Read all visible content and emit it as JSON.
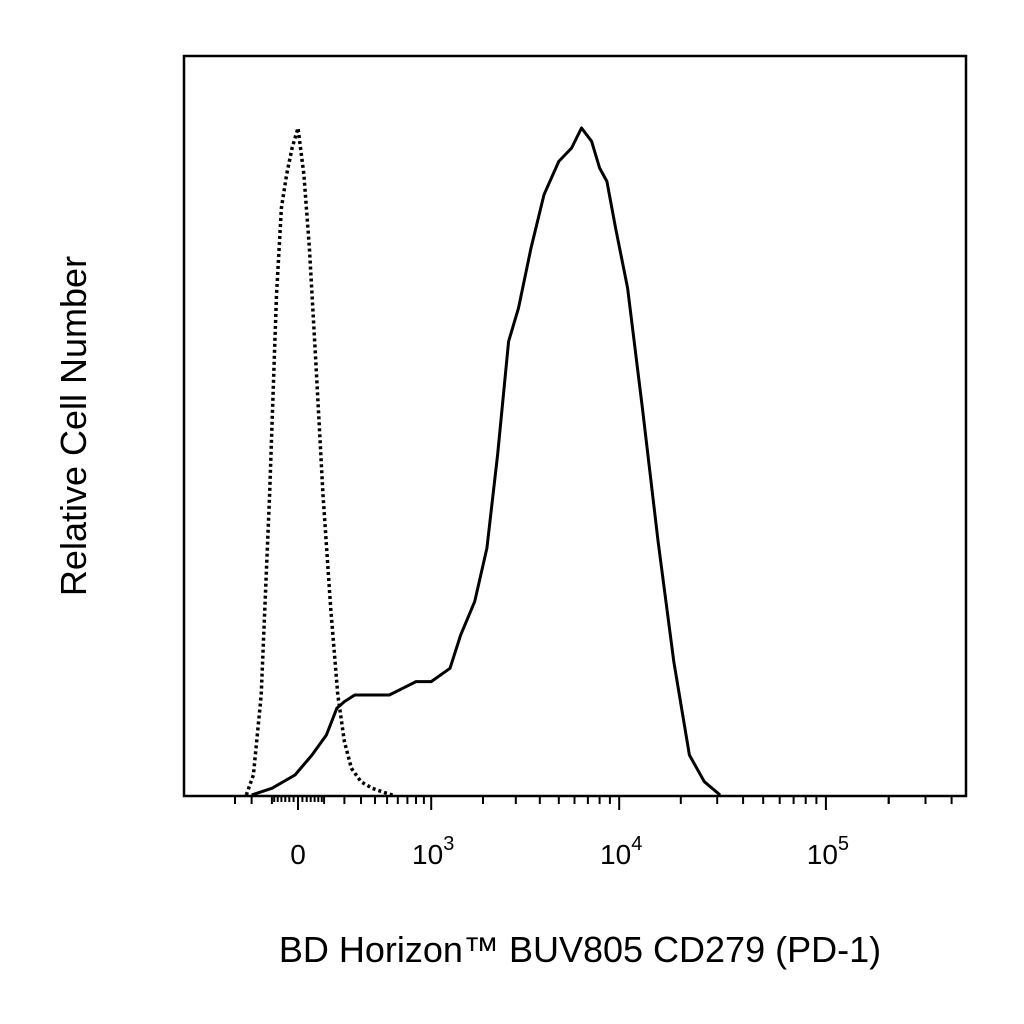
{
  "chart_data": {
    "type": "line",
    "xlabel": "BD Horizon™ BUV805 CD279 (PD-1)",
    "ylabel": "Relative Cell Number",
    "x_scale": "biexponential",
    "x_ticks": [
      {
        "value": 0,
        "label": "0",
        "sup": ""
      },
      {
        "value": 1000,
        "label": "10",
        "sup": "3"
      },
      {
        "value": 10000,
        "label": "10",
        "sup": "4"
      },
      {
        "value": 100000,
        "label": "10",
        "sup": "5"
      }
    ],
    "xlim": [
      -300,
      250000
    ],
    "ylim": [
      0,
      1
    ],
    "grid": false,
    "legend": "none",
    "series": [
      {
        "style": "dotted",
        "color": "#000000",
        "points": [
          [
            -230,
            0.0
          ],
          [
            -190,
            0.03
          ],
          [
            -150,
            0.15
          ],
          [
            -110,
            0.45
          ],
          [
            -80,
            0.75
          ],
          [
            -60,
            0.88
          ],
          [
            -40,
            0.93
          ],
          [
            -20,
            0.97
          ],
          [
            0,
            1.0
          ],
          [
            20,
            0.93
          ],
          [
            40,
            0.82
          ],
          [
            65,
            0.65
          ],
          [
            95,
            0.45
          ],
          [
            130,
            0.28
          ],
          [
            165,
            0.15
          ],
          [
            200,
            0.08
          ],
          [
            240,
            0.04
          ],
          [
            300,
            0.02
          ],
          [
            380,
            0.01
          ],
          [
            470,
            0.004
          ],
          [
            550,
            0.0
          ]
        ]
      },
      {
        "style": "solid",
        "color": "#000000",
        "points": [
          [
            -200,
            0.0
          ],
          [
            -100,
            0.01
          ],
          [
            -10,
            0.03
          ],
          [
            50,
            0.06
          ],
          [
            110,
            0.09
          ],
          [
            160,
            0.13
          ],
          [
            200,
            0.14
          ],
          [
            260,
            0.15
          ],
          [
            330,
            0.15
          ],
          [
            420,
            0.15
          ],
          [
            520,
            0.15
          ],
          [
            650,
            0.16
          ],
          [
            800,
            0.17
          ],
          [
            1000,
            0.17
          ],
          [
            1300,
            0.19
          ],
          [
            1500,
            0.24
          ],
          [
            1800,
            0.29
          ],
          [
            2100,
            0.37
          ],
          [
            2400,
            0.51
          ],
          [
            2750,
            0.68
          ],
          [
            3100,
            0.73
          ],
          [
            3600,
            0.82
          ],
          [
            4200,
            0.9
          ],
          [
            5000,
            0.95
          ],
          [
            5800,
            0.97
          ],
          [
            6500,
            1.0
          ],
          [
            7300,
            0.98
          ],
          [
            8000,
            0.94
          ],
          [
            8700,
            0.92
          ],
          [
            9600,
            0.85
          ],
          [
            11000,
            0.76
          ],
          [
            13000,
            0.58
          ],
          [
            15500,
            0.38
          ],
          [
            18500,
            0.2
          ],
          [
            22000,
            0.06
          ],
          [
            26000,
            0.02
          ],
          [
            31000,
            0.0
          ]
        ]
      }
    ]
  }
}
